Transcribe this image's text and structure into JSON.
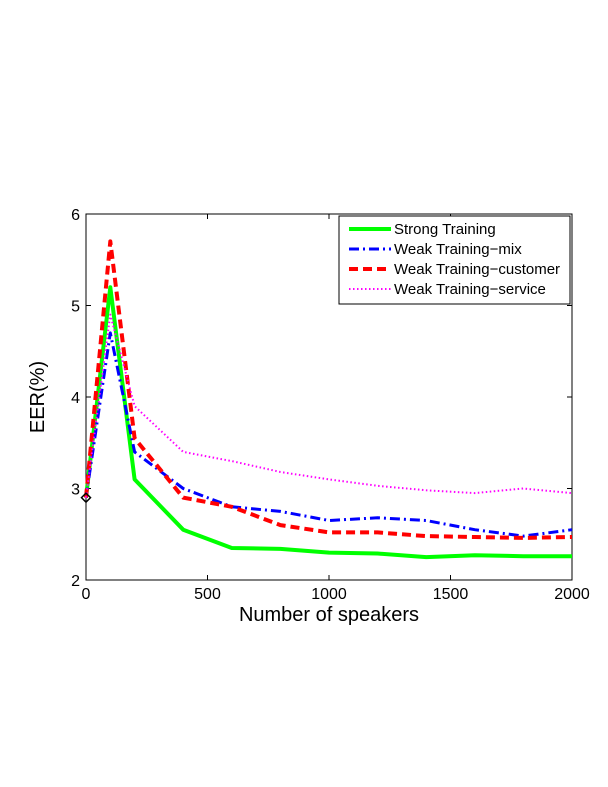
{
  "chart_data": {
    "type": "line",
    "title": "",
    "xlabel": "Number of speakers",
    "ylabel": "EER(%)",
    "xlim": [
      0,
      2000
    ],
    "ylim": [
      2,
      6
    ],
    "xticks": [
      0,
      500,
      1000,
      1500,
      2000
    ],
    "yticks": [
      2,
      3,
      4,
      5,
      6
    ],
    "xtick_labels": [
      "0",
      "500",
      "1000",
      "1500",
      "2000"
    ],
    "ytick_labels": [
      "2",
      "3",
      "4",
      "5",
      "6"
    ],
    "grid": false,
    "legend_position": "top-right",
    "series": [
      {
        "name": "Strong Training",
        "color": "#00ff00",
        "style": "solid",
        "x": [
          0,
          100,
          200,
          400,
          600,
          800,
          1000,
          1200,
          1400,
          1600,
          1800,
          2000
        ],
        "y": [
          2.9,
          5.2,
          3.1,
          2.55,
          2.35,
          2.34,
          2.3,
          2.29,
          2.25,
          2.27,
          2.26,
          2.26
        ]
      },
      {
        "name": "Weak Training−mix",
        "color": "#0000ff",
        "style": "dashdot",
        "x": [
          0,
          100,
          200,
          400,
          600,
          800,
          1000,
          1200,
          1400,
          1600,
          1800,
          2000
        ],
        "y": [
          2.9,
          4.7,
          3.4,
          3.0,
          2.8,
          2.75,
          2.65,
          2.68,
          2.65,
          2.55,
          2.48,
          2.55
        ]
      },
      {
        "name": "Weak Training−customer",
        "color": "#ff0000",
        "style": "dashed",
        "x": [
          0,
          100,
          200,
          400,
          600,
          800,
          1000,
          1200,
          1400,
          1600,
          1800,
          2000
        ],
        "y": [
          2.9,
          5.7,
          3.55,
          2.9,
          2.8,
          2.6,
          2.52,
          2.52,
          2.48,
          2.47,
          2.46,
          2.47
        ]
      },
      {
        "name": "Weak Training−service",
        "color": "#ff00ff",
        "style": "dotted",
        "x": [
          0,
          100,
          200,
          400,
          600,
          800,
          1000,
          1200,
          1400,
          1600,
          1800,
          2000
        ],
        "y": [
          2.9,
          4.9,
          3.9,
          3.4,
          3.3,
          3.18,
          3.1,
          3.03,
          2.98,
          2.95,
          3.0,
          2.95
        ]
      }
    ],
    "marker": {
      "x": 0,
      "y": 2.9,
      "shape": "diamond",
      "color": "#000000"
    }
  }
}
